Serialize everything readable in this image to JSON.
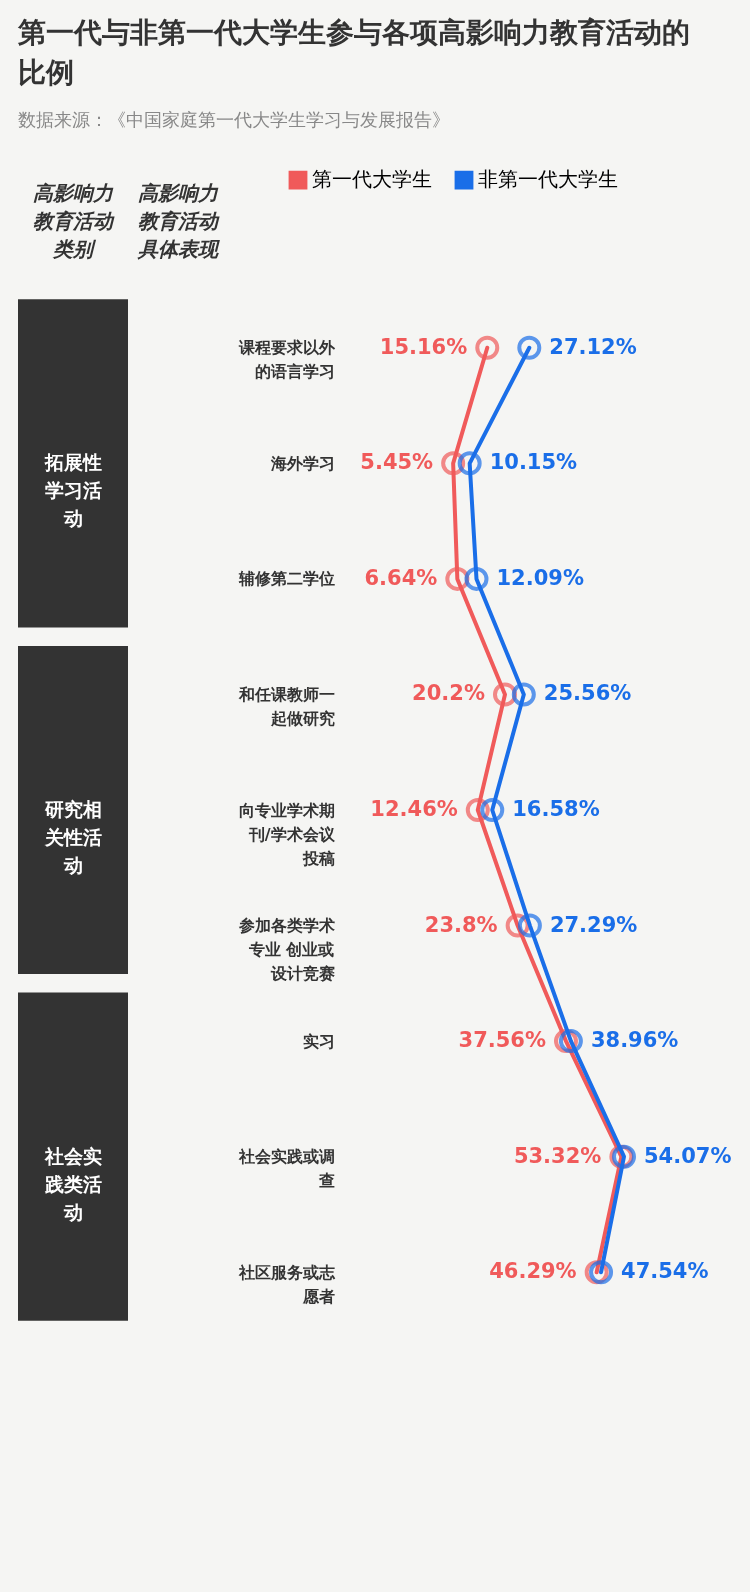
{
  "chart_data": {
    "type": "line",
    "orientation": "horizontal",
    "title": "第一代与非第一代大学生参与各项高影响力教育活动的比例",
    "categories": [
      "课程要求以外的语言学习",
      "海外学习",
      "辅修第二学位",
      "和任课教师一起做研究",
      "向专业学术期刊/学术会议投稿",
      "参加各类学术专业 创业或设计竞赛",
      "实习",
      "社会实践或调查",
      "社区服务或志愿者"
    ],
    "series": [
      {
        "name": "第一代大学生",
        "color": "#f05a5a",
        "values": [
          15.16,
          5.45,
          6.64,
          20.2,
          12.46,
          23.8,
          37.56,
          53.32,
          46.29
        ],
        "value_labels": [
          "15.16%",
          "5.45%",
          "6.64%",
          "20.2%",
          "12.46%",
          "23.8%",
          "37.56%",
          "53.32%",
          "46.29%"
        ]
      },
      {
        "name": "非第一代大学生",
        "color": "#1a6ee8",
        "values": [
          27.12,
          10.15,
          12.09,
          25.56,
          16.58,
          27.29,
          38.96,
          54.07,
          47.54
        ],
        "value_labels": [
          "27.12%",
          "10.15%",
          "12.09%",
          "25.56%",
          "16.58%",
          "27.29%",
          "38.96%",
          "54.07%",
          "47.54%"
        ]
      }
    ],
    "marker": "circle",
    "legend": "top",
    "annotations": [
      "数据来源：《中国家庭第一代大学生学习与发展报告》",
      "高影响力教育活动类别",
      "高影响力教育活动具体表现",
      "拓展性学习活动",
      "研究相关性活动",
      "社会实践类活动"
    ]
  }
}
